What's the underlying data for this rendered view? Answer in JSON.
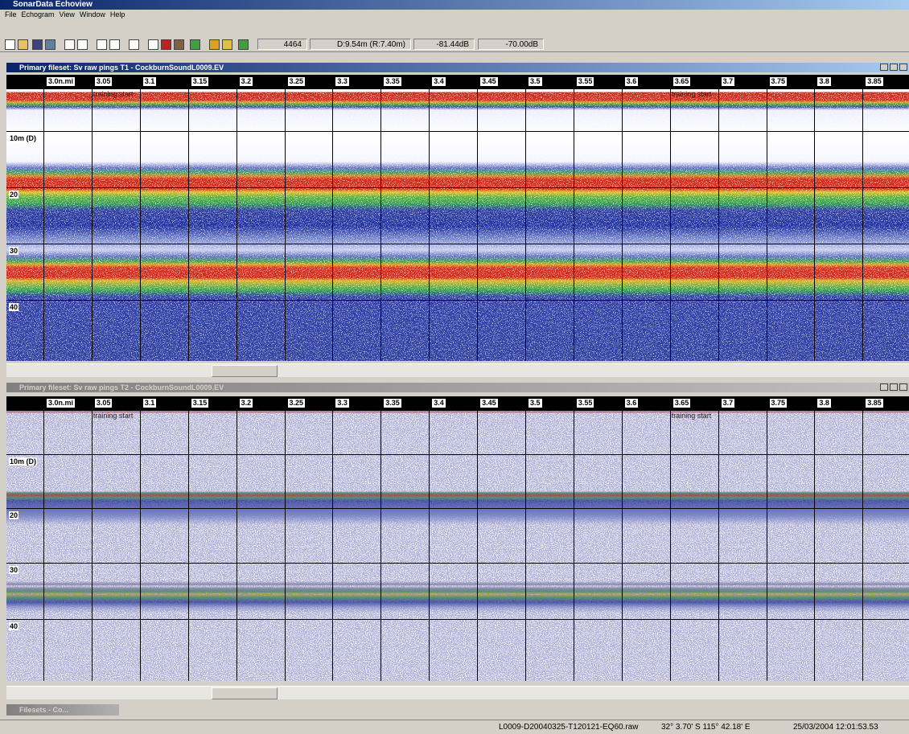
{
  "app": {
    "title": "SonarData Echoview",
    "menu": [
      "File",
      "Echogram",
      "View",
      "Window",
      "Help"
    ]
  },
  "toolbar": {
    "fields": [
      "4464",
      "D:9.54m (R:7.40m)",
      "-81.44dB",
      "-70.00dB"
    ]
  },
  "echograms": [
    {
      "title": "Primary fileset: Sv raw pings T1 - CockburnSoundL0009.EV",
      "ruler": [
        "3.0n.mi",
        "3.05",
        "3.1",
        "3.15",
        "3.2",
        "3.25",
        "3.3",
        "3.35",
        "3.4",
        "3.45",
        "3.5",
        "3.55",
        "3.6",
        "3.65",
        "3.7",
        "3.75",
        "3.8",
        "3.85"
      ],
      "annotations": [
        "training start",
        "training start"
      ],
      "depth_labels": [
        "10m (D)",
        "20",
        "30",
        "40"
      ]
    },
    {
      "title": "Primary fileset: Sv raw pings T2 - CockburnSoundL0009.EV",
      "ruler": [
        "3.0n.mi",
        "3.05",
        "3.1",
        "3.15",
        "3.2",
        "3.25",
        "3.3",
        "3.35",
        "3.4",
        "3.45",
        "3.5",
        "3.55",
        "3.6",
        "3.65",
        "3.7",
        "3.75",
        "3.8",
        "3.85"
      ],
      "annotations": [
        "training start",
        "training start"
      ],
      "depth_labels": [
        "10m (D)",
        "20",
        "30",
        "40"
      ]
    }
  ],
  "taskbar": {
    "tab": "Filesets - Co..."
  },
  "status": [
    "L0009-D20040325-T120121-EQ60.raw",
    "32° 3.70' S 115° 42.18' E",
    "25/03/2004 12:01:53.53"
  ]
}
